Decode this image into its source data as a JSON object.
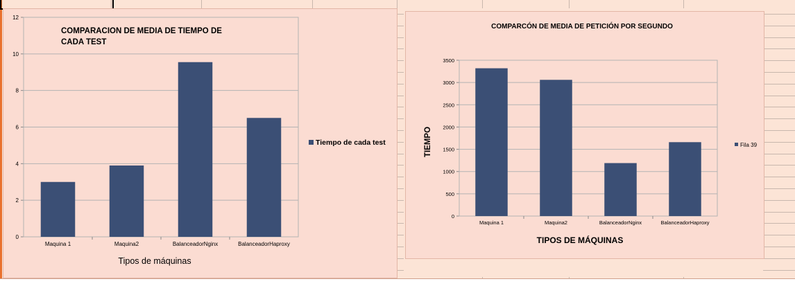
{
  "chart_data": [
    {
      "type": "bar",
      "title": "COMPARACION DE MEDIA DE TIEMPO DE CADA TEST",
      "title_lines": [
        "COMPARACION DE MEDIA DE TIEMPO DE",
        "CADA TEST"
      ],
      "categories": [
        "Maquina 1",
        "Maquina2",
        "BalanceadorNginx",
        "BalanceadorHaproxy"
      ],
      "series": [
        {
          "name": "Tiempo de cada test",
          "values": [
            3.0,
            3.9,
            9.55,
            6.5
          ]
        }
      ],
      "xlabel": "Tipos de máquinas",
      "ylabel": "",
      "ylim": [
        0,
        12
      ],
      "yticks": [
        0,
        2,
        4,
        6,
        8,
        10,
        12
      ],
      "grid": true,
      "legend": "right",
      "bar_color": "#3b4f75"
    },
    {
      "type": "bar",
      "title": "COMPARCÓN DE MEDIA DE PETICIÓN POR SEGUNDO",
      "categories": [
        "Maquina 1",
        "Maquina2",
        "BalanceadorNginx",
        "BalanceadorHaproxy"
      ],
      "series": [
        {
          "name": "Fila 39",
          "values": [
            3320,
            3060,
            1190,
            1660
          ]
        }
      ],
      "xlabel": "TIPOS DE MÁQUINAS",
      "ylabel": "TIEMPO",
      "ylim": [
        0,
        3500
      ],
      "yticks": [
        0,
        500,
        1000,
        1500,
        2000,
        2500,
        3000,
        3500
      ],
      "grid": true,
      "legend": "right",
      "bar_color": "#3b4f75"
    }
  ]
}
